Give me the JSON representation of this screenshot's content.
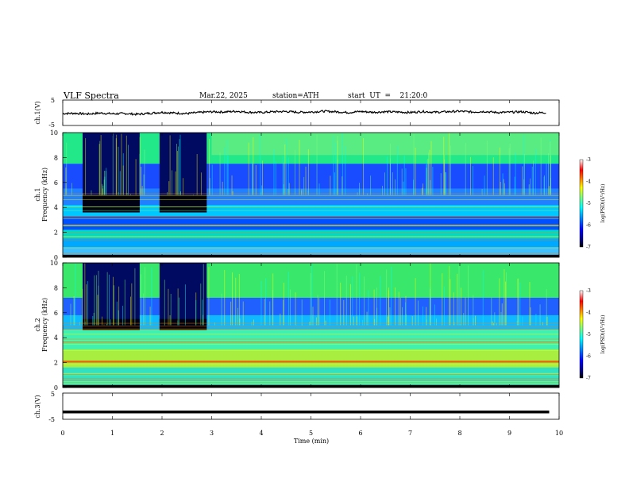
{
  "header": {
    "title": "VLF  Spectra",
    "date": "Mar.22, 2025",
    "station": "station=ATH",
    "start": "start  UT  =    21:20:0"
  },
  "colors": {
    "colormap": [
      "#000000",
      "#00007f",
      "#0000ff",
      "#007fff",
      "#00ffff",
      "#7fff7f",
      "#ffff00",
      "#ff7f00",
      "#ff0000",
      "#7f0000",
      "#ffffff"
    ],
    "waveform": "#000000"
  },
  "chart_data": [
    {
      "type": "line",
      "panel": "ch1-waveform",
      "ylabel": "ch.1(V)",
      "ylim": [
        -5,
        5
      ],
      "yticks": [
        "5",
        "-5"
      ],
      "x": [
        0,
        0.25,
        0.5,
        0.75,
        1,
        1.25,
        1.5,
        1.75,
        2,
        2.25,
        2.5,
        2.75,
        3,
        3.25,
        3.5,
        3.75,
        4,
        4.25,
        4.5,
        4.75,
        5,
        5.25,
        5.5,
        5.75,
        6,
        6.25,
        6.5,
        6.75,
        7,
        7.25,
        7.5,
        7.75,
        8,
        8.25,
        8.5,
        8.75,
        9,
        9.25,
        9.5,
        9.75
      ],
      "values": [
        -0.3,
        -0.2,
        -0.5,
        -0.1,
        -0.4,
        -0.3,
        -0.6,
        -0.2,
        0.2,
        -0.1,
        -0.3,
        0.1,
        0.4,
        0.3,
        0.6,
        0.2,
        0.1,
        0.4,
        0.5,
        0.2,
        0.3,
        0.6,
        0.4,
        0.1,
        0.5,
        0.2,
        0.4,
        0.3,
        0.1,
        0.5,
        0.2,
        0.4,
        0.6,
        0.3,
        0.5,
        0.1,
        0.2,
        0.4,
        -0.1,
        0.1
      ]
    },
    {
      "type": "heatmap",
      "panel": "ch1-spectrogram",
      "ylabel": "ch.1\nFrequency (kHz)",
      "ylim": [
        0,
        10
      ],
      "xlim": [
        0,
        10
      ],
      "yticks": [
        "0",
        "2",
        "4",
        "6",
        "8",
        "10"
      ],
      "colorbar": {
        "label": "log(PSD)(V²/Hz)",
        "ticks": [
          "-3",
          "-4",
          "-5",
          "-6",
          "-7"
        ],
        "range": [
          -7,
          -3
        ]
      }
    },
    {
      "type": "heatmap",
      "panel": "ch2-spectrogram",
      "ylabel": "ch.2\nFrequency (kHz)",
      "ylim": [
        0,
        10
      ],
      "xlim": [
        0,
        10
      ],
      "yticks": [
        "0",
        "2",
        "4",
        "6",
        "8",
        "10"
      ],
      "colorbar": {
        "label": "log(PSD)(V²/Hz)",
        "ticks": [
          "-3",
          "-4",
          "-5",
          "-6",
          "-7"
        ],
        "range": [
          -7,
          -3
        ]
      }
    },
    {
      "type": "line",
      "panel": "ch3-waveform",
      "ylabel": "ch.3(V)",
      "ylim": [
        -5,
        5
      ],
      "yticks": [
        "5",
        "-5"
      ],
      "x": [
        0,
        9.8
      ],
      "values": [
        -2.2,
        -2.2
      ],
      "xlabel": "Time  (min)",
      "xticks": [
        "0",
        "1",
        "2",
        "3",
        "4",
        "5",
        "6",
        "7",
        "8",
        "9",
        "10"
      ]
    }
  ]
}
